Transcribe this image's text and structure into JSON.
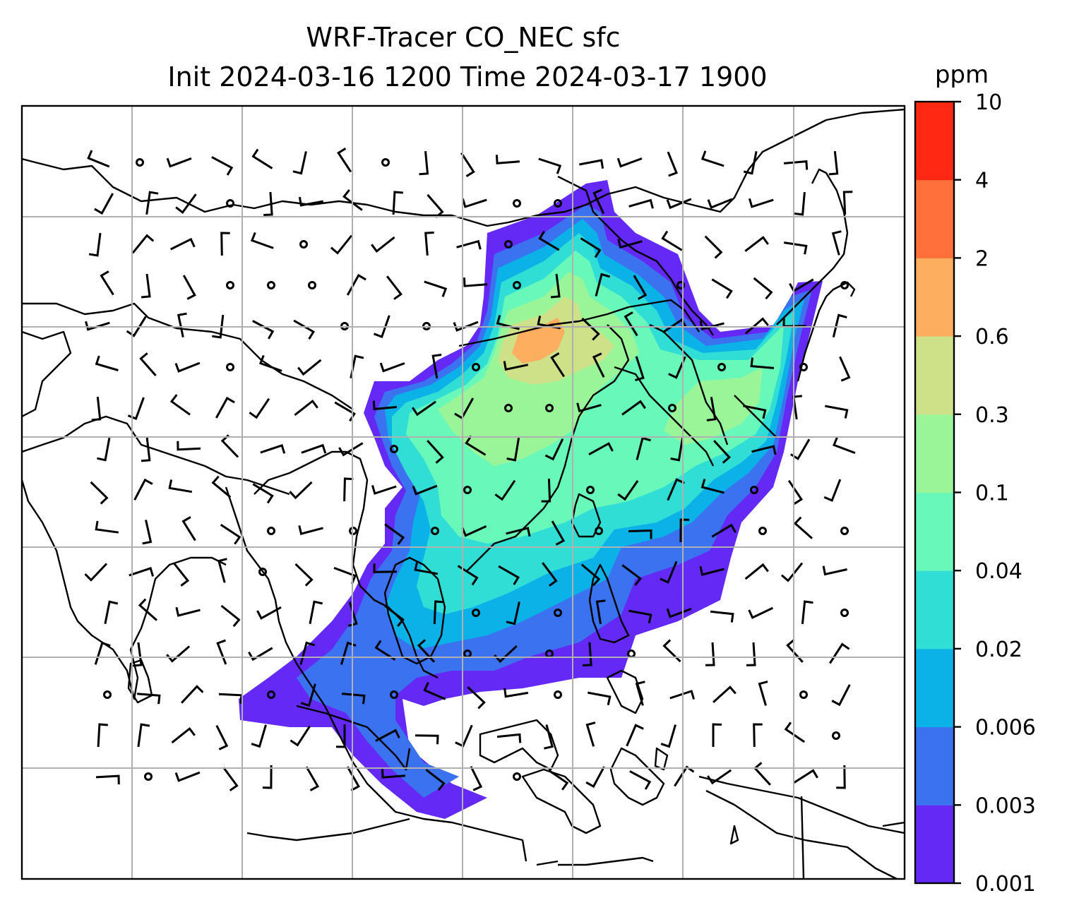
{
  "title_line1": "WRF-Tracer CO_NEC sfc",
  "title_line2": "Init 2024-03-16 1200 Time 2024-03-17 1900",
  "colorbar": {
    "unit": "ppm",
    "levels": [
      "0.001",
      "0.003",
      "0.006",
      "0.02",
      "0.04",
      "0.1",
      "0.3",
      "0.6",
      "2",
      "4",
      "10"
    ],
    "colors": [
      "#6429f5",
      "#3a72f0",
      "#0ab2e8",
      "#30ded6",
      "#68f8b9",
      "#9af599",
      "#cfe188",
      "#feae5f",
      "#ff703a",
      "#ff2812"
    ]
  },
  "plume_color_scheme": {
    "background": "#ffffff",
    "coastline": "#000000",
    "gridline": "#b0b0b0"
  }
}
